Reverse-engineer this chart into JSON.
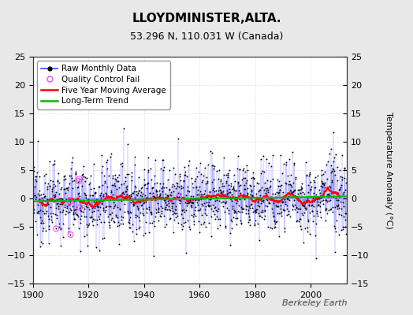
{
  "title": "LLOYDMINISTER,ALTA.",
  "subtitle": "53.296 N, 110.031 W (Canada)",
  "ylabel": "Temperature Anomaly (°C)",
  "watermark": "Berkeley Earth",
  "year_start": 1900,
  "year_end": 2013,
  "ylim": [
    -15,
    25
  ],
  "yticks": [
    -15,
    -10,
    -5,
    0,
    5,
    10,
    15,
    20,
    25
  ],
  "xticks": [
    1900,
    1920,
    1940,
    1960,
    1980,
    2000
  ],
  "background_color": "#e8e8e8",
  "plot_bg_color": "#ffffff",
  "raw_line_color": "#4444ff",
  "dot_color": "#000000",
  "qc_color": "#ff44ff",
  "moving_avg_color": "#ff0000",
  "trend_color": "#00bb00",
  "grid_color": "#cccccc",
  "seed": 12345,
  "noise_std": 3.2,
  "trend_slope": 0.008,
  "trend_intercept": -0.5,
  "moving_avg_window": 60,
  "n_qc_fails": 7,
  "title_fontsize": 11,
  "subtitle_fontsize": 9,
  "tick_fontsize": 8,
  "ylabel_fontsize": 8,
  "legend_fontsize": 7.5,
  "watermark_fontsize": 8
}
